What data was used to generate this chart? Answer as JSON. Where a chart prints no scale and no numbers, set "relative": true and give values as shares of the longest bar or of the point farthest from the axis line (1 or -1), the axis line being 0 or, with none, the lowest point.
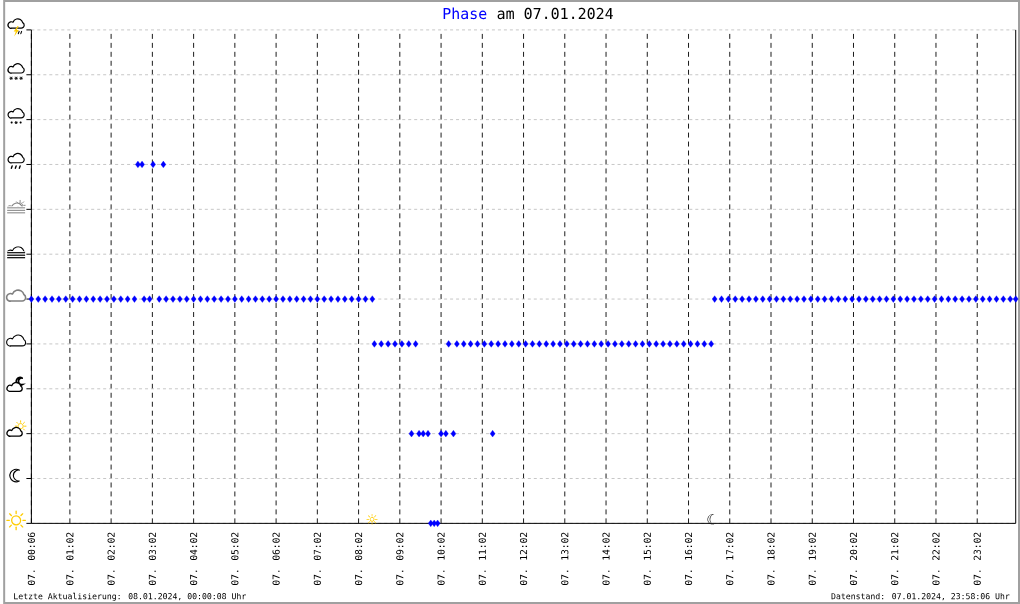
{
  "chart_data": {
    "type": "scatter",
    "title": "am 07.01.2024",
    "relative": true,
    "marker": "diamond",
    "grid": true,
    "xlim": [
      "2024-01-07T00:06",
      "2024-01-07T23:58"
    ],
    "xticks": [
      {
        "value": "2024-01-07T00:06",
        "label": "07. 00:06"
      },
      {
        "value": "2024-01-07T01:02",
        "label": "07. 01:02"
      },
      {
        "value": "2024-01-07T02:02",
        "label": "07. 02:02"
      },
      {
        "value": "2024-01-07T03:02",
        "label": "07. 03:02"
      },
      {
        "value": "2024-01-07T04:02",
        "label": "07. 04:02"
      },
      {
        "value": "2024-01-07T05:02",
        "label": "07. 05:02"
      },
      {
        "value": "2024-01-07T06:02",
        "label": "07. 06:02"
      },
      {
        "value": "2024-01-07T07:02",
        "label": "07. 07:02"
      },
      {
        "value": "2024-01-07T08:02",
        "label": "07. 08:02"
      },
      {
        "value": "2024-01-07T09:02",
        "label": "07. 09:02"
      },
      {
        "value": "2024-01-07T10:02",
        "label": "07. 10:02"
      },
      {
        "value": "2024-01-07T11:02",
        "label": "07. 11:02"
      },
      {
        "value": "2024-01-07T12:02",
        "label": "07. 12:02"
      },
      {
        "value": "2024-01-07T13:02",
        "label": "07. 13:02"
      },
      {
        "value": "2024-01-07T14:02",
        "label": "07. 14:02"
      },
      {
        "value": "2024-01-07T15:02",
        "label": "07. 15:02"
      },
      {
        "value": "2024-01-07T16:02",
        "label": "07. 16:02"
      },
      {
        "value": "2024-01-07T17:02",
        "label": "07. 17:02"
      },
      {
        "value": "2024-01-07T18:02",
        "label": "07. 18:02"
      },
      {
        "value": "2024-01-07T19:02",
        "label": "07. 19:02"
      },
      {
        "value": "2024-01-07T20:02",
        "label": "07. 20:02"
      },
      {
        "value": "2024-01-07T21:02",
        "label": "07. 21:02"
      },
      {
        "value": "2024-01-07T22:02",
        "label": "07. 22:02"
      },
      {
        "value": "2024-01-07T23:02",
        "label": "07. 23:02"
      }
    ],
    "series": [
      {
        "name": "Phase",
        "color": "#0000ff",
        "x": [
          "2024-01-07T00:06",
          "2024-01-07T00:16",
          "2024-01-07T00:26",
          "2024-01-07T00:36",
          "2024-01-07T00:46",
          "2024-01-07T00:56",
          "2024-01-07T01:06",
          "2024-01-07T01:16",
          "2024-01-07T01:26",
          "2024-01-07T01:36",
          "2024-01-07T01:46",
          "2024-01-07T01:56",
          "2024-01-07T02:06",
          "2024-01-07T02:16",
          "2024-01-07T02:26",
          "2024-01-07T02:36",
          "2024-01-07T02:41",
          "2024-01-07T02:47",
          "2024-01-07T02:50",
          "2024-01-07T02:58",
          "2024-01-07T03:03",
          "2024-01-07T03:12",
          "2024-01-07T03:18",
          "2024-01-07T03:22",
          "2024-01-07T03:32",
          "2024-01-07T03:42",
          "2024-01-07T03:52",
          "2024-01-07T04:02",
          "2024-01-07T04:12",
          "2024-01-07T04:22",
          "2024-01-07T04:32",
          "2024-01-07T04:42",
          "2024-01-07T04:52",
          "2024-01-07T05:02",
          "2024-01-07T05:12",
          "2024-01-07T05:22",
          "2024-01-07T05:32",
          "2024-01-07T05:42",
          "2024-01-07T05:52",
          "2024-01-07T06:02",
          "2024-01-07T06:12",
          "2024-01-07T06:22",
          "2024-01-07T06:32",
          "2024-01-07T06:42",
          "2024-01-07T06:52",
          "2024-01-07T07:02",
          "2024-01-07T07:12",
          "2024-01-07T07:22",
          "2024-01-07T07:32",
          "2024-01-07T07:42",
          "2024-01-07T07:52",
          "2024-01-07T08:02",
          "2024-01-07T08:12",
          "2024-01-07T08:22",
          "2024-01-07T08:25",
          "2024-01-07T08:35",
          "2024-01-07T08:45",
          "2024-01-07T08:55",
          "2024-01-07T09:05",
          "2024-01-07T09:15",
          "2024-01-07T09:19",
          "2024-01-07T09:25",
          "2024-01-07T09:30",
          "2024-01-07T09:36",
          "2024-01-07T09:43",
          "2024-01-07T09:47",
          "2024-01-07T09:52",
          "2024-01-07T09:57",
          "2024-01-07T10:02",
          "2024-01-07T10:09",
          "2024-01-07T10:13",
          "2024-01-07T10:20",
          "2024-01-07T10:25",
          "2024-01-07T10:35",
          "2024-01-07T10:45",
          "2024-01-07T10:55",
          "2024-01-07T11:05",
          "2024-01-07T11:15",
          "2024-01-07T11:17",
          "2024-01-07T11:25",
          "2024-01-07T11:35",
          "2024-01-07T11:45",
          "2024-01-07T11:55",
          "2024-01-07T12:05",
          "2024-01-07T12:15",
          "2024-01-07T12:25",
          "2024-01-07T12:35",
          "2024-01-07T12:45",
          "2024-01-07T12:55",
          "2024-01-07T13:05",
          "2024-01-07T13:15",
          "2024-01-07T13:25",
          "2024-01-07T13:35",
          "2024-01-07T13:45",
          "2024-01-07T13:55",
          "2024-01-07T14:05",
          "2024-01-07T14:15",
          "2024-01-07T14:25",
          "2024-01-07T14:35",
          "2024-01-07T14:45",
          "2024-01-07T14:55",
          "2024-01-07T15:05",
          "2024-01-07T15:15",
          "2024-01-07T15:25",
          "2024-01-07T15:35",
          "2024-01-07T15:45",
          "2024-01-07T15:55",
          "2024-01-07T16:05",
          "2024-01-07T16:15",
          "2024-01-07T16:25",
          "2024-01-07T16:35",
          "2024-01-07T16:40",
          "2024-01-07T16:50",
          "2024-01-07T17:00",
          "2024-01-07T17:10",
          "2024-01-07T17:20",
          "2024-01-07T17:30",
          "2024-01-07T17:40",
          "2024-01-07T17:50",
          "2024-01-07T18:00",
          "2024-01-07T18:10",
          "2024-01-07T18:20",
          "2024-01-07T18:30",
          "2024-01-07T18:40",
          "2024-01-07T18:50",
          "2024-01-07T19:00",
          "2024-01-07T19:10",
          "2024-01-07T19:20",
          "2024-01-07T19:30",
          "2024-01-07T19:40",
          "2024-01-07T19:50",
          "2024-01-07T20:00",
          "2024-01-07T20:10",
          "2024-01-07T20:20",
          "2024-01-07T20:30",
          "2024-01-07T20:40",
          "2024-01-07T20:50",
          "2024-01-07T21:00",
          "2024-01-07T21:10",
          "2024-01-07T21:20",
          "2024-01-07T21:30",
          "2024-01-07T21:40",
          "2024-01-07T21:50",
          "2024-01-07T22:00",
          "2024-01-07T22:10",
          "2024-01-07T22:20",
          "2024-01-07T22:30",
          "2024-01-07T22:40",
          "2024-01-07T22:50",
          "2024-01-07T23:00",
          "2024-01-07T23:10",
          "2024-01-07T23:20",
          "2024-01-07T23:30",
          "2024-01-07T23:40",
          "2024-01-07T23:50",
          "2024-01-07T23:58"
        ],
        "values": [
          0.625,
          0.625,
          0.625,
          0.625,
          0.625,
          0.625,
          0.625,
          0.625,
          0.625,
          0.625,
          0.625,
          0.625,
          0.625,
          0.625,
          0.625,
          0.625,
          1,
          1,
          0.625,
          0.625,
          1,
          0.625,
          1,
          0.625,
          0.625,
          0.625,
          0.625,
          0.625,
          0.625,
          0.625,
          0.625,
          0.625,
          0.625,
          0.625,
          0.625,
          0.625,
          0.625,
          0.625,
          0.625,
          0.625,
          0.625,
          0.625,
          0.625,
          0.625,
          0.625,
          0.625,
          0.625,
          0.625,
          0.625,
          0.625,
          0.625,
          0.625,
          0.625,
          0.625,
          0.5,
          0.5,
          0.5,
          0.5,
          0.5,
          0.5,
          0.25,
          0.5,
          0.25,
          0.25,
          0.25,
          0,
          0,
          0,
          0.25,
          0.25,
          0.5,
          0.25,
          0.5,
          0.5,
          0.5,
          0.5,
          0.5,
          0.5,
          0.25,
          0.5,
          0.5,
          0.5,
          0.5,
          0.5,
          0.5,
          0.5,
          0.5,
          0.5,
          0.5,
          0.5,
          0.5,
          0.5,
          0.5,
          0.5,
          0.5,
          0.5,
          0.5,
          0.5,
          0.5,
          0.5,
          0.5,
          0.5,
          0.5,
          0.5,
          0.5,
          0.5,
          0.5,
          0.5,
          0.5,
          0.5,
          0.5,
          0.625,
          0.625,
          0.625,
          0.625,
          0.625,
          0.625,
          0.625,
          0.625,
          0.625,
          0.625,
          0.625,
          0.625,
          0.625,
          0.625,
          0.625,
          0.625,
          0.625,
          0.625,
          0.625,
          0.625,
          0.625,
          0.625,
          0.625,
          0.625,
          0.625,
          0.625,
          0.625,
          0.625,
          0.625,
          0.625,
          0.625,
          0.625,
          0.625,
          0.625,
          0.625,
          0.625,
          0.625,
          0.625,
          0.625,
          0.625,
          0.625,
          0.625,
          0.625,
          0.625,
          0.625
        ]
      }
    ],
    "annotations": [
      "☼",
      "☾",
      "Letzte Aktualisierung: 08.01.2024, 00:00:08 Uhr",
      "Datenstand: 07.01.2024, 23:58:06 Uhr"
    ]
  }
}
